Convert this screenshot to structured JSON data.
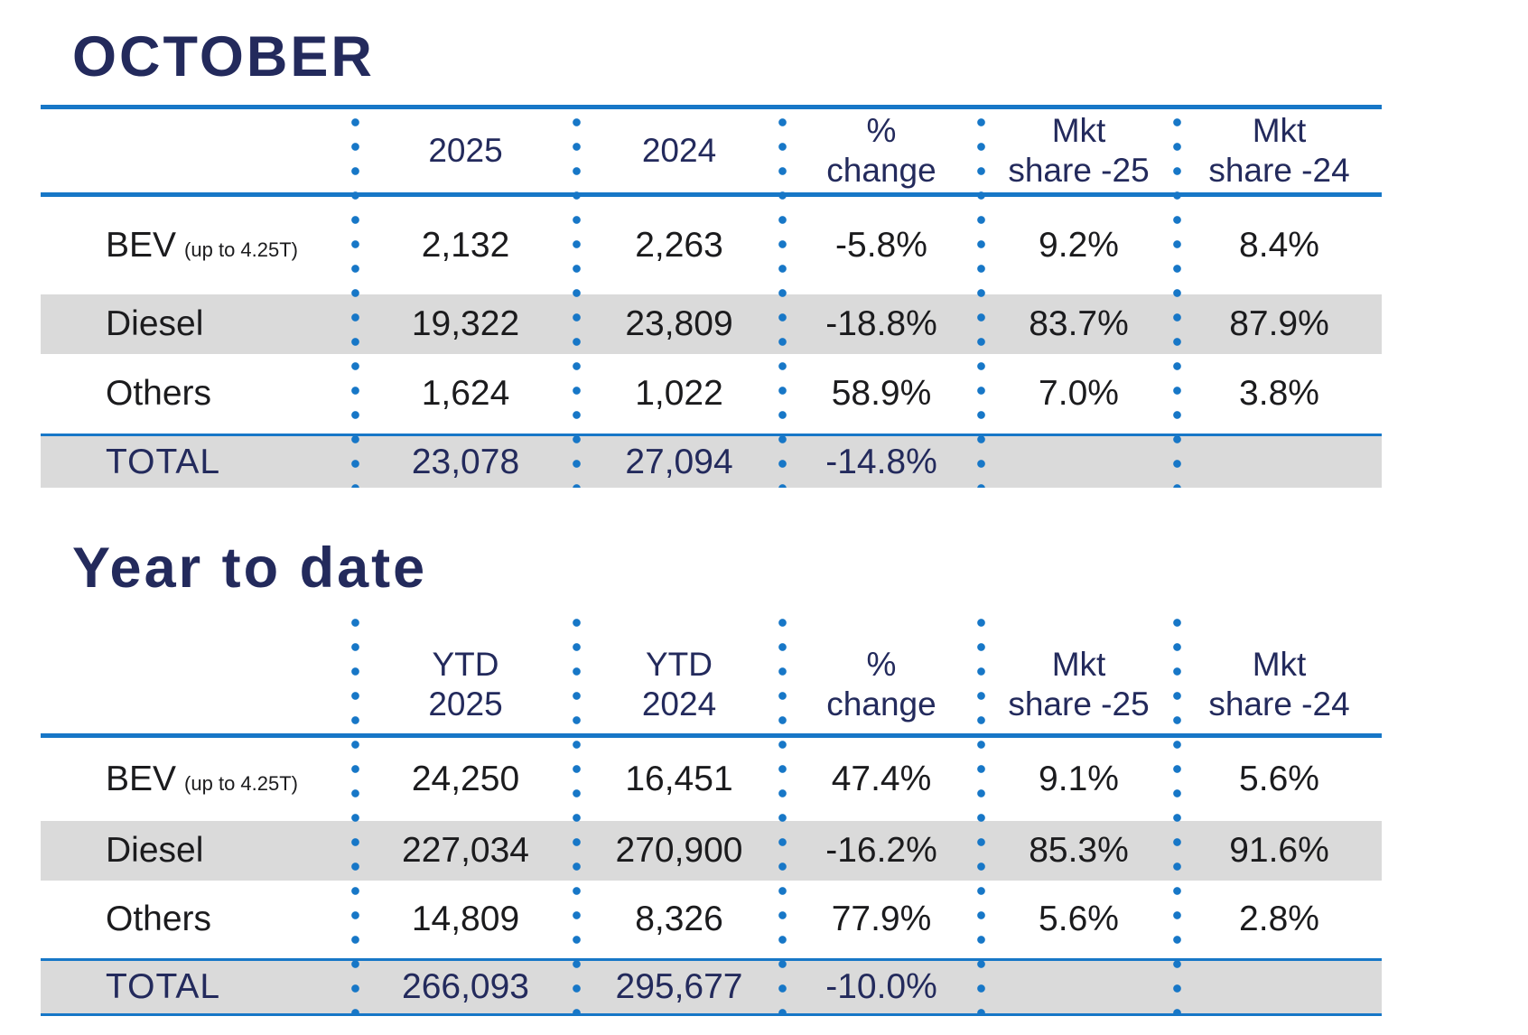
{
  "chart_data": [
    {
      "type": "table",
      "title": "OCTOBER",
      "columns": [
        "",
        "2025",
        "2024",
        "% change",
        "Mkt share -25",
        "Mkt share -24"
      ],
      "rows": [
        [
          "BEV (up to 4.25T)",
          "2,132",
          "2,263",
          "-5.8%",
          "9.2%",
          "8.4%"
        ],
        [
          "Diesel",
          "19,322",
          "23,809",
          "-18.8%",
          "83.7%",
          "87.9%"
        ],
        [
          "Others",
          "1,624",
          "1,022",
          "58.9%",
          "7.0%",
          "3.8%"
        ],
        [
          "TOTAL",
          "23,078",
          "27,094",
          "-14.8%",
          "",
          ""
        ]
      ]
    },
    {
      "type": "table",
      "title": "Year to date",
      "columns": [
        "",
        "YTD 2025",
        "YTD 2024",
        "% change",
        "Mkt share -25",
        "Mkt share -24"
      ],
      "rows": [
        [
          "BEV (up to 4.25T)",
          "24,250",
          "16,451",
          "47.4%",
          "9.1%",
          "5.6%"
        ],
        [
          "Diesel",
          "227,034",
          "270,900",
          "-16.2%",
          "85.3%",
          "91.6%"
        ],
        [
          "Others",
          "14,809",
          "8,326",
          "77.9%",
          "5.6%",
          "2.8%"
        ],
        [
          "TOTAL",
          "266,093",
          "295,677",
          "-10.0%",
          "",
          ""
        ]
      ]
    }
  ],
  "colors": {
    "navy": "#232a5c",
    "blue": "#1777c7",
    "row_gray": "#dadada",
    "text": "#1b1b1d"
  },
  "october": {
    "title": "OCTOBER",
    "head": {
      "c1a": "2025",
      "c2a": "2024",
      "c3a": "%",
      "c3b": "change",
      "c4a": "Mkt",
      "c4b": "share -25",
      "c5a": "Mkt",
      "c5b": "share -24"
    },
    "bev": {
      "label": "BEV",
      "note": "(up to 4.25T)",
      "y25": "2,132",
      "y24": "2,263",
      "chg": "-5.8%",
      "s25": "9.2%",
      "s24": "8.4%"
    },
    "diesel": {
      "label": "Diesel",
      "y25": "19,322",
      "y24": "23,809",
      "chg": "-18.8%",
      "s25": "83.7%",
      "s24": "87.9%"
    },
    "others": {
      "label": "Others",
      "y25": "1,624",
      "y24": "1,022",
      "chg": "58.9%",
      "s25": "7.0%",
      "s24": "3.8%"
    },
    "total": {
      "label": "TOTAL",
      "y25": "23,078",
      "y24": "27,094",
      "chg": "-14.8%"
    }
  },
  "ytd": {
    "title": "Year to date",
    "head": {
      "c1a": "YTD",
      "c1b": "2025",
      "c2a": "YTD",
      "c2b": "2024",
      "c3a": "%",
      "c3b": "change",
      "c4a": "Mkt",
      "c4b": "share -25",
      "c5a": "Mkt",
      "c5b": "share -24"
    },
    "bev": {
      "label": "BEV",
      "note": "(up to 4.25T)",
      "y25": "24,250",
      "y24": "16,451",
      "chg": "47.4%",
      "s25": "9.1%",
      "s24": "5.6%"
    },
    "diesel": {
      "label": "Diesel",
      "y25": "227,034",
      "y24": "270,900",
      "chg": "-16.2%",
      "s25": "85.3%",
      "s24": "91.6%"
    },
    "others": {
      "label": "Others",
      "y25": "14,809",
      "y24": "8,326",
      "chg": "77.9%",
      "s25": "5.6%",
      "s24": "2.8%"
    },
    "total": {
      "label": "TOTAL",
      "y25": "266,093",
      "y24": "295,677",
      "chg": "-10.0%"
    }
  }
}
